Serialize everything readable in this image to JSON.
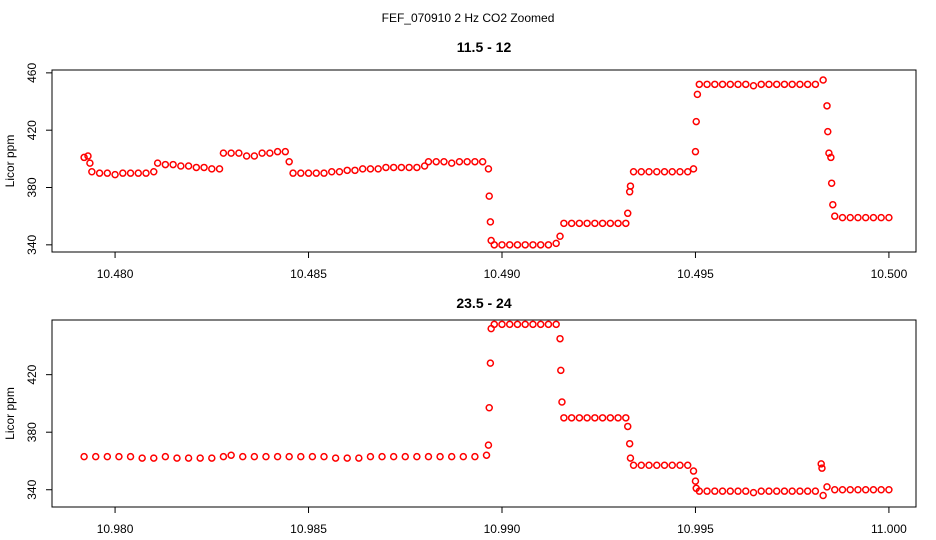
{
  "title": "FEF_070910  2 Hz CO2 Zoomed",
  "chart_data": [
    {
      "type": "scatter",
      "title": "11.5 - 12",
      "y_label": "Licor ppm",
      "color": "#ff0000",
      "xlim": [
        10.47837,
        10.5007
      ],
      "ylim": [
        335,
        462
      ],
      "xticks": [
        {
          "value": 10.48,
          "label": "10.480"
        },
        {
          "value": 10.485,
          "label": "10.485"
        },
        {
          "value": 10.49,
          "label": "10.490"
        },
        {
          "value": 10.495,
          "label": "10.495"
        },
        {
          "value": 10.5,
          "label": "10.500"
        }
      ],
      "yticks": [
        340,
        380,
        420,
        460
      ],
      "x": [
        10.4792,
        10.4793,
        10.47935,
        10.4794,
        10.4796,
        10.4798,
        10.48,
        10.4802,
        10.4804,
        10.4806,
        10.4808,
        10.481,
        10.4811,
        10.4813,
        10.4815,
        10.4817,
        10.4819,
        10.4821,
        10.4823,
        10.4825,
        10.4827,
        10.4828,
        10.483,
        10.4832,
        10.4834,
        10.4836,
        10.4838,
        10.484,
        10.4842,
        10.4844,
        10.4845,
        10.4846,
        10.4848,
        10.485,
        10.4852,
        10.4854,
        10.4856,
        10.4858,
        10.486,
        10.4862,
        10.4864,
        10.4866,
        10.4868,
        10.487,
        10.4872,
        10.4874,
        10.4876,
        10.4878,
        10.488,
        10.4881,
        10.4883,
        10.4885,
        10.4887,
        10.4889,
        10.4891,
        10.4893,
        10.4895,
        10.48965,
        10.48967,
        10.4897,
        10.48972,
        10.4898,
        10.49,
        10.4902,
        10.4904,
        10.4906,
        10.4908,
        10.491,
        10.4912,
        10.4914,
        10.4915,
        10.4916,
        10.4918,
        10.492,
        10.4922,
        10.4924,
        10.4926,
        10.4928,
        10.493,
        10.4932,
        10.49325,
        10.4933,
        10.49332,
        10.4934,
        10.4936,
        10.4938,
        10.494,
        10.4942,
        10.4944,
        10.4946,
        10.4948,
        10.49495,
        10.495,
        10.49502,
        10.49505,
        10.4951,
        10.4953,
        10.4955,
        10.4957,
        10.4959,
        10.4961,
        10.4963,
        10.4965,
        10.4967,
        10.4969,
        10.4971,
        10.4973,
        10.4975,
        10.4977,
        10.4979,
        10.4981,
        10.4983,
        10.4984,
        10.49842,
        10.49845,
        10.4985,
        10.49852,
        10.49855,
        10.4986,
        10.4988,
        10.499,
        10.4992,
        10.4994,
        10.4996,
        10.4998,
        10.5
      ],
      "values": [
        401,
        402,
        397,
        391,
        390,
        390,
        389,
        390,
        390,
        390,
        390,
        391,
        397,
        396,
        396,
        395,
        395,
        394,
        394,
        393,
        393,
        404,
        404,
        404,
        402,
        402,
        404,
        404,
        405,
        405,
        398,
        390,
        390,
        390,
        390,
        390,
        391,
        391,
        392,
        392,
        393,
        393,
        393,
        394,
        394,
        394,
        394,
        394,
        395,
        398,
        398,
        398,
        397,
        398,
        398,
        398,
        398,
        393,
        374,
        356,
        343,
        340,
        340,
        340,
        340,
        340,
        340,
        340,
        340,
        341,
        346,
        355,
        355,
        355,
        355,
        355,
        355,
        355,
        355,
        355,
        362,
        377,
        381,
        391,
        391,
        391,
        391,
        391,
        391,
        391,
        391,
        393,
        405,
        426,
        445,
        452,
        452,
        452,
        452,
        452,
        452,
        452,
        451,
        452,
        452,
        452,
        452,
        452,
        452,
        452,
        452,
        455,
        437,
        419,
        404,
        401,
        383,
        368,
        360,
        359,
        359,
        359,
        359,
        359,
        359,
        359
      ]
    },
    {
      "type": "scatter",
      "title": "23.5 - 24",
      "y_label": "Licor ppm",
      "color": "#ff0000",
      "xlim": [
        10.97837,
        11.0007
      ],
      "ylim": [
        328,
        458
      ],
      "xticks": [
        {
          "value": 10.98,
          "label": "10.980"
        },
        {
          "value": 10.985,
          "label": "10.985"
        },
        {
          "value": 10.99,
          "label": "10.990"
        },
        {
          "value": 10.995,
          "label": "10.995"
        },
        {
          "value": 11,
          "label": "11.000"
        }
      ],
      "yticks": [
        340,
        380,
        420
      ],
      "x": [
        10.9792,
        10.9795,
        10.9798,
        10.9801,
        10.9804,
        10.9807,
        10.981,
        10.9813,
        10.9816,
        10.9819,
        10.9822,
        10.9825,
        10.9828,
        10.983,
        10.9833,
        10.9836,
        10.9839,
        10.9842,
        10.9845,
        10.9848,
        10.9851,
        10.9854,
        10.9857,
        10.986,
        10.9863,
        10.9866,
        10.9869,
        10.9872,
        10.9875,
        10.9878,
        10.9881,
        10.9884,
        10.9887,
        10.989,
        10.9893,
        10.9896,
        10.98965,
        10.98967,
        10.9897,
        10.98972,
        10.9898,
        10.99,
        10.9902,
        10.9904,
        10.9906,
        10.9908,
        10.991,
        10.9912,
        10.9914,
        10.9915,
        10.99152,
        10.99155,
        10.9916,
        10.9918,
        10.992,
        10.9922,
        10.9924,
        10.9926,
        10.9928,
        10.993,
        10.9932,
        10.99325,
        10.9933,
        10.99332,
        10.9934,
        10.9936,
        10.9938,
        10.994,
        10.9942,
        10.9944,
        10.9946,
        10.9948,
        10.99495,
        10.995,
        10.99502,
        10.9951,
        10.9953,
        10.9955,
        10.9957,
        10.9959,
        10.9961,
        10.9963,
        10.9965,
        10.9967,
        10.9969,
        10.9971,
        10.9973,
        10.9975,
        10.9977,
        10.9979,
        10.9981,
        10.99825,
        10.99827,
        10.9983,
        10.9984,
        10.9986,
        10.9988,
        10.999,
        10.9992,
        10.9994,
        10.9996,
        10.9998,
        11
      ],
      "values": [
        363,
        363,
        363,
        363,
        363,
        362,
        362,
        363,
        362,
        362,
        362,
        362,
        363,
        364,
        363,
        363,
        363,
        363,
        363,
        363,
        363,
        363,
        362,
        362,
        362,
        363,
        363,
        363,
        363,
        363,
        363,
        363,
        363,
        363,
        363,
        364,
        371,
        397,
        428,
        452,
        455,
        455,
        455,
        455,
        455,
        455,
        455,
        455,
        455,
        445,
        423,
        401,
        390,
        390,
        390,
        390,
        390,
        390,
        390,
        390,
        390,
        384,
        372,
        362,
        357,
        357,
        357,
        357,
        357,
        357,
        357,
        357,
        353,
        346,
        341,
        339,
        339,
        339,
        339,
        339,
        339,
        339,
        338,
        339,
        339,
        339,
        339,
        339,
        339,
        339,
        339,
        358,
        355,
        336,
        342,
        340,
        340,
        340,
        340,
        340,
        340,
        340,
        340
      ]
    }
  ]
}
